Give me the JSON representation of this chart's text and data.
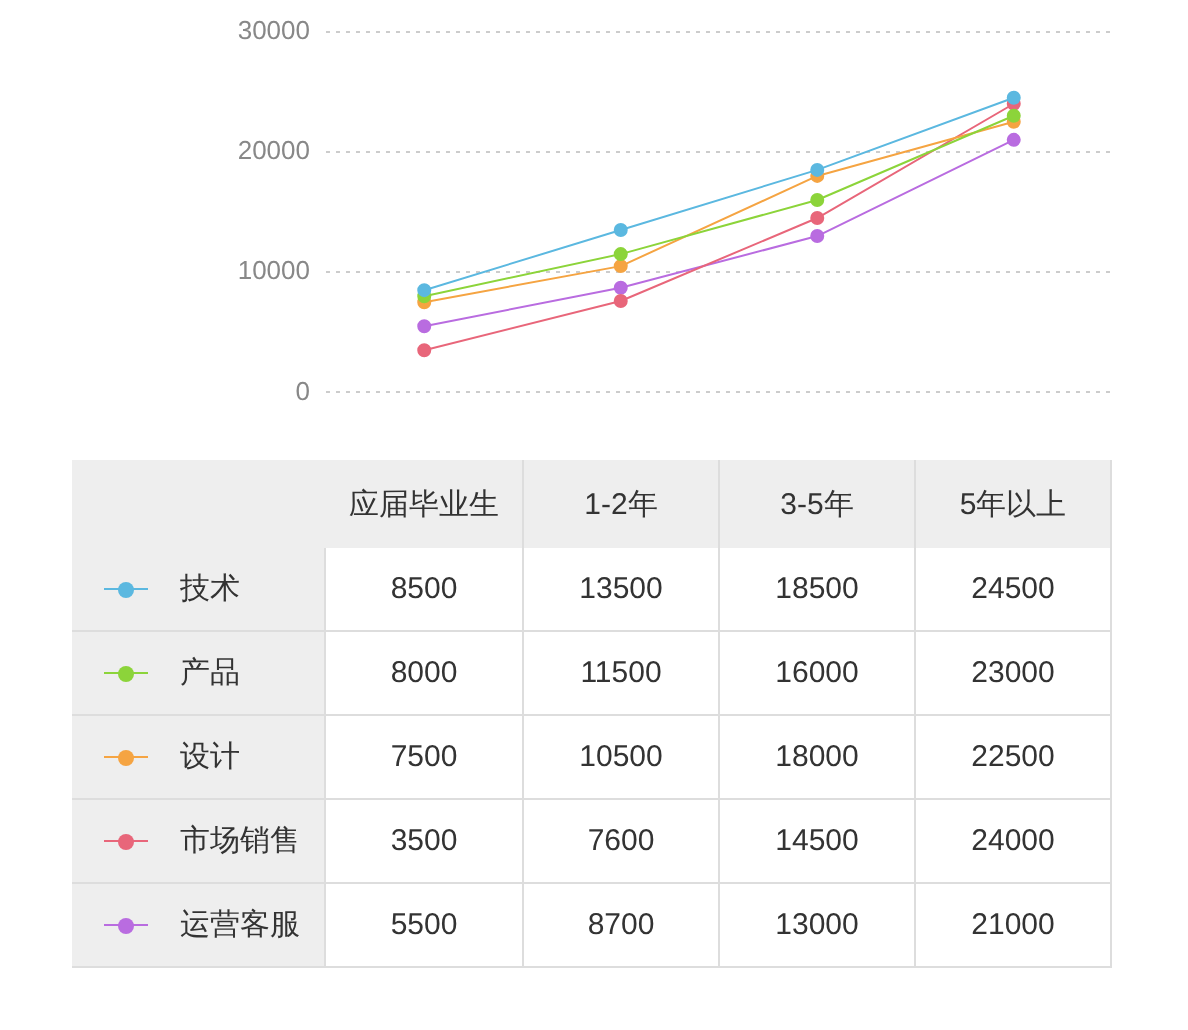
{
  "chart_data": {
    "type": "line",
    "categories": [
      "应届毕业生",
      "1-2年",
      "3-5年",
      "5年以上"
    ],
    "series": [
      {
        "name": "技术",
        "color": "#5bb8e0",
        "values": [
          8500,
          13500,
          18500,
          24500
        ]
      },
      {
        "name": "产品",
        "color": "#8cd43a",
        "values": [
          8000,
          11500,
          16000,
          23000
        ]
      },
      {
        "name": "设计",
        "color": "#f5a442",
        "values": [
          7500,
          10500,
          18000,
          22500
        ]
      },
      {
        "name": "市场销售",
        "color": "#e8667a",
        "values": [
          3500,
          7600,
          14500,
          24000
        ]
      },
      {
        "name": "运营客服",
        "color": "#b96ce0",
        "values": [
          5500,
          8700,
          13000,
          21000
        ]
      }
    ],
    "ylim": [
      0,
      30000
    ],
    "yticks": [
      0,
      10000,
      20000,
      30000
    ],
    "grid": "y",
    "marker": "circle",
    "line_style": "solid",
    "tick_labels": "y",
    "legend": "bottom",
    "data_labels": true
  }
}
